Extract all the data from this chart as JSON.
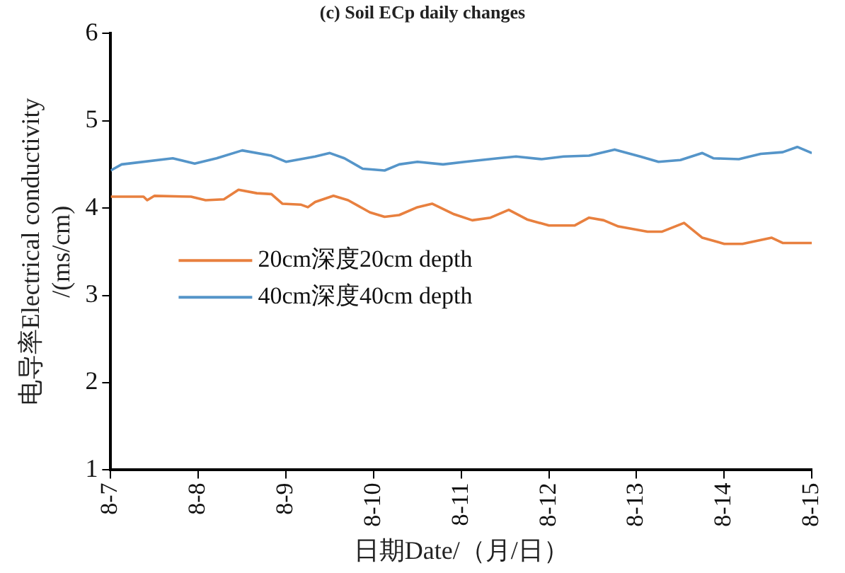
{
  "chart_data": {
    "type": "line",
    "title": "(c) Soil ECp daily changes",
    "xlabel": "日期Date/（月/日）",
    "ylabel": "电导率Electrical conductivity\n/(ms/cm)",
    "xlim": [
      "--08-07",
      "--08-15"
    ],
    "xticks": [
      {
        "value": "--08-07",
        "label": "8-7"
      },
      {
        "value": "--08-08",
        "label": "8-8"
      },
      {
        "value": "--08-09",
        "label": "8-9"
      },
      {
        "value": "--08-10",
        "label": "8-10"
      },
      {
        "value": "--08-11",
        "label": "8-11"
      },
      {
        "value": "--08-12",
        "label": "8-12"
      },
      {
        "value": "--08-13",
        "label": "8-13"
      },
      {
        "value": "--08-14",
        "label": "8-14"
      },
      {
        "value": "--08-15",
        "label": "8-15"
      }
    ],
    "ylim": [
      1,
      6
    ],
    "yticks": [
      1,
      2,
      3,
      4,
      5,
      6
    ],
    "grid": false,
    "legend": "center left",
    "marker": "none",
    "line_style": "solid",
    "series": [
      {
        "name": "20cm深度20cm depth",
        "color": "#e8803f",
        "x": [
          "--08-07T00:00",
          "--08-07T09:00",
          "--08-07T10:00",
          "--08-07T12:00",
          "--08-07T22:00",
          "--08-08T02:00",
          "--08-08T07:00",
          "--08-08T11:00",
          "--08-08T16:00",
          "--08-08T20:00",
          "--08-08T23:00",
          "--08-09T04:00",
          "--08-09T06:00",
          "--08-09T08:00",
          "--08-09T13:00",
          "--08-09T17:00",
          "--08-09T23:00",
          "--08-10T03:00",
          "--08-10T07:00",
          "--08-10T12:00",
          "--08-10T16:00",
          "--08-10T22:00",
          "--08-11T03:00",
          "--08-11T08:00",
          "--08-11T13:00",
          "--08-11T18:00",
          "--08-12T00:00",
          "--08-12T07:00",
          "--08-12T11:00",
          "--08-12T15:00",
          "--08-12T19:00",
          "--08-13T03:00",
          "--08-13T07:00",
          "--08-13T13:00",
          "--08-13T18:00",
          "--08-14T00:00",
          "--08-14T05:00",
          "--08-14T13:00",
          "--08-14T16:00",
          "--08-15T00:00"
        ],
        "values": [
          4.13,
          4.13,
          4.09,
          4.14,
          4.13,
          4.09,
          4.1,
          4.21,
          4.17,
          4.16,
          4.05,
          4.04,
          4.01,
          4.07,
          4.14,
          4.09,
          3.95,
          3.9,
          3.92,
          4.01,
          4.05,
          3.93,
          3.86,
          3.89,
          3.98,
          3.87,
          3.8,
          3.8,
          3.89,
          3.86,
          3.79,
          3.73,
          3.73,
          3.83,
          3.66,
          3.59,
          3.59,
          3.66,
          3.6,
          3.6
        ]
      },
      {
        "name": "40cm深度40cm depth",
        "color": "#5595c9",
        "x": [
          "--08-07T00:00",
          "--08-07T03:00",
          "--08-07T17:00",
          "--08-07T23:00",
          "--08-08T05:00",
          "--08-08T12:00",
          "--08-08T20:00",
          "--08-09T00:00",
          "--08-09T08:00",
          "--08-09T12:00",
          "--08-09T16:00",
          "--08-09T21:00",
          "--08-10T03:00",
          "--08-10T07:00",
          "--08-10T12:00",
          "--08-10T19:00",
          "--08-11T01:00",
          "--08-11T10:00",
          "--08-11T15:00",
          "--08-11T22:00",
          "--08-12T04:00",
          "--08-12T11:00",
          "--08-12T18:00",
          "--08-13T01:00",
          "--08-13T06:00",
          "--08-13T12:00",
          "--08-13T18:00",
          "--08-13T21:00",
          "--08-14T04:00",
          "--08-14T10:00",
          "--08-14T16:00",
          "--08-14T20:00",
          "--08-15T00:00"
        ],
        "values": [
          4.43,
          4.5,
          4.57,
          4.51,
          4.57,
          4.66,
          4.6,
          4.53,
          4.59,
          4.63,
          4.57,
          4.45,
          4.43,
          4.5,
          4.53,
          4.5,
          4.53,
          4.57,
          4.59,
          4.56,
          4.59,
          4.6,
          4.67,
          4.59,
          4.53,
          4.55,
          4.63,
          4.57,
          4.56,
          4.62,
          4.64,
          4.7,
          4.63
        ]
      }
    ]
  }
}
